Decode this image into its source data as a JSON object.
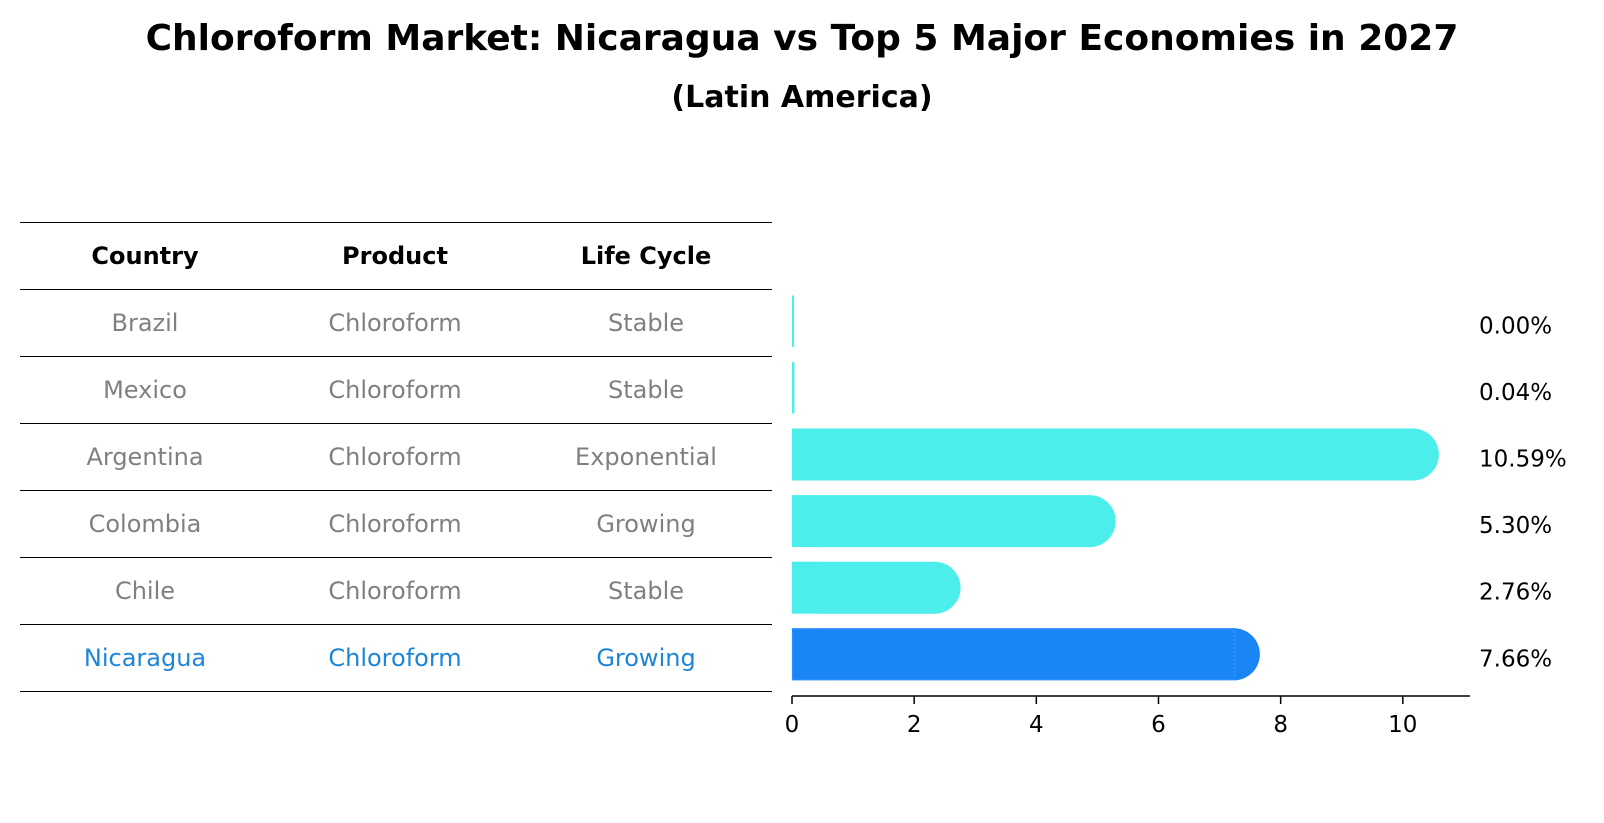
{
  "title": "Chloroform Market: Nicaragua vs Top 5 Major Economies in 2027",
  "subtitle": "(Latin America)",
  "table": {
    "headers": [
      "Country",
      "Product",
      "Life Cycle"
    ],
    "rows": [
      {
        "country": "Brazil",
        "product": "Chloroform",
        "life_cycle": "Stable"
      },
      {
        "country": "Mexico",
        "product": "Chloroform",
        "life_cycle": "Stable"
      },
      {
        "country": "Argentina",
        "product": "Chloroform",
        "life_cycle": "Exponential"
      },
      {
        "country": "Colombia",
        "product": "Chloroform",
        "life_cycle": "Growing"
      },
      {
        "country": "Chile",
        "product": "Chloroform",
        "life_cycle": "Stable"
      },
      {
        "country": "Nicaragua",
        "product": "Chloroform",
        "life_cycle": "Growing"
      }
    ]
  },
  "chart_data": {
    "type": "bar",
    "orientation": "horizontal",
    "categories": [
      "Brazil",
      "Mexico",
      "Argentina",
      "Colombia",
      "Chile",
      "Nicaragua"
    ],
    "values": [
      0.0,
      0.04,
      10.59,
      5.3,
      2.76,
      7.66
    ],
    "value_labels": [
      "0.00%",
      "0.04%",
      "10.59%",
      "5.30%",
      "2.76%",
      "7.66%"
    ],
    "highlight": "Nicaragua",
    "xlim": [
      0,
      11.1
    ],
    "xticks": [
      0,
      2,
      4,
      6,
      8,
      10
    ],
    "colors": {
      "default": "#4beeea",
      "highlight": "#1a85f5",
      "table_highlight_text": "#1e86d6",
      "table_text": "#808080"
    }
  }
}
